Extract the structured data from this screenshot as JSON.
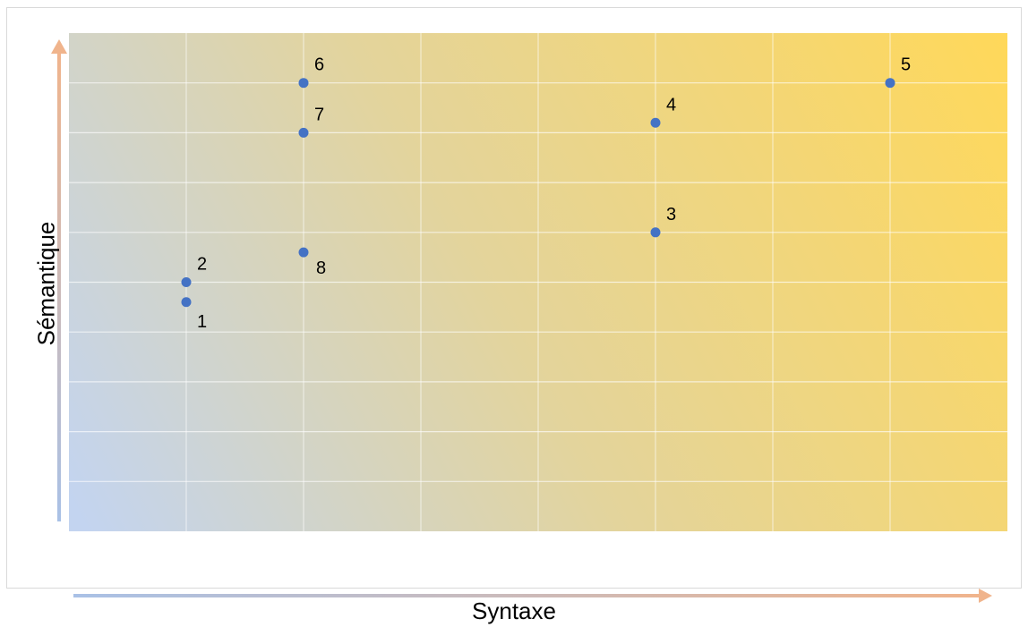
{
  "chart_data": {
    "type": "scatter",
    "title": "",
    "xlabel": "Syntaxe",
    "ylabel": "Sémantique",
    "xlim": [
      0,
      8
    ],
    "ylim": [
      0,
      10
    ],
    "grid": true,
    "legend": "none",
    "points": [
      {
        "label": "1",
        "x": 1,
        "y": 4.6
      },
      {
        "label": "2",
        "x": 1,
        "y": 5.0
      },
      {
        "label": "3",
        "x": 5,
        "y": 6.0
      },
      {
        "label": "4",
        "x": 5,
        "y": 8.2
      },
      {
        "label": "5",
        "x": 7,
        "y": 9.0
      },
      {
        "label": "6",
        "x": 2,
        "y": 9.0
      },
      {
        "label": "7",
        "x": 2,
        "y": 8.0
      },
      {
        "label": "8",
        "x": 2,
        "y": 5.6
      }
    ],
    "colors": {
      "point": "#4472c4",
      "bg_blue": "#c3d4f0",
      "bg_yellow": "#ffd85a",
      "grid": "#ffffff",
      "arrow_blue": "#a9c1e6",
      "arrow_orange": "#f0b48c"
    }
  }
}
